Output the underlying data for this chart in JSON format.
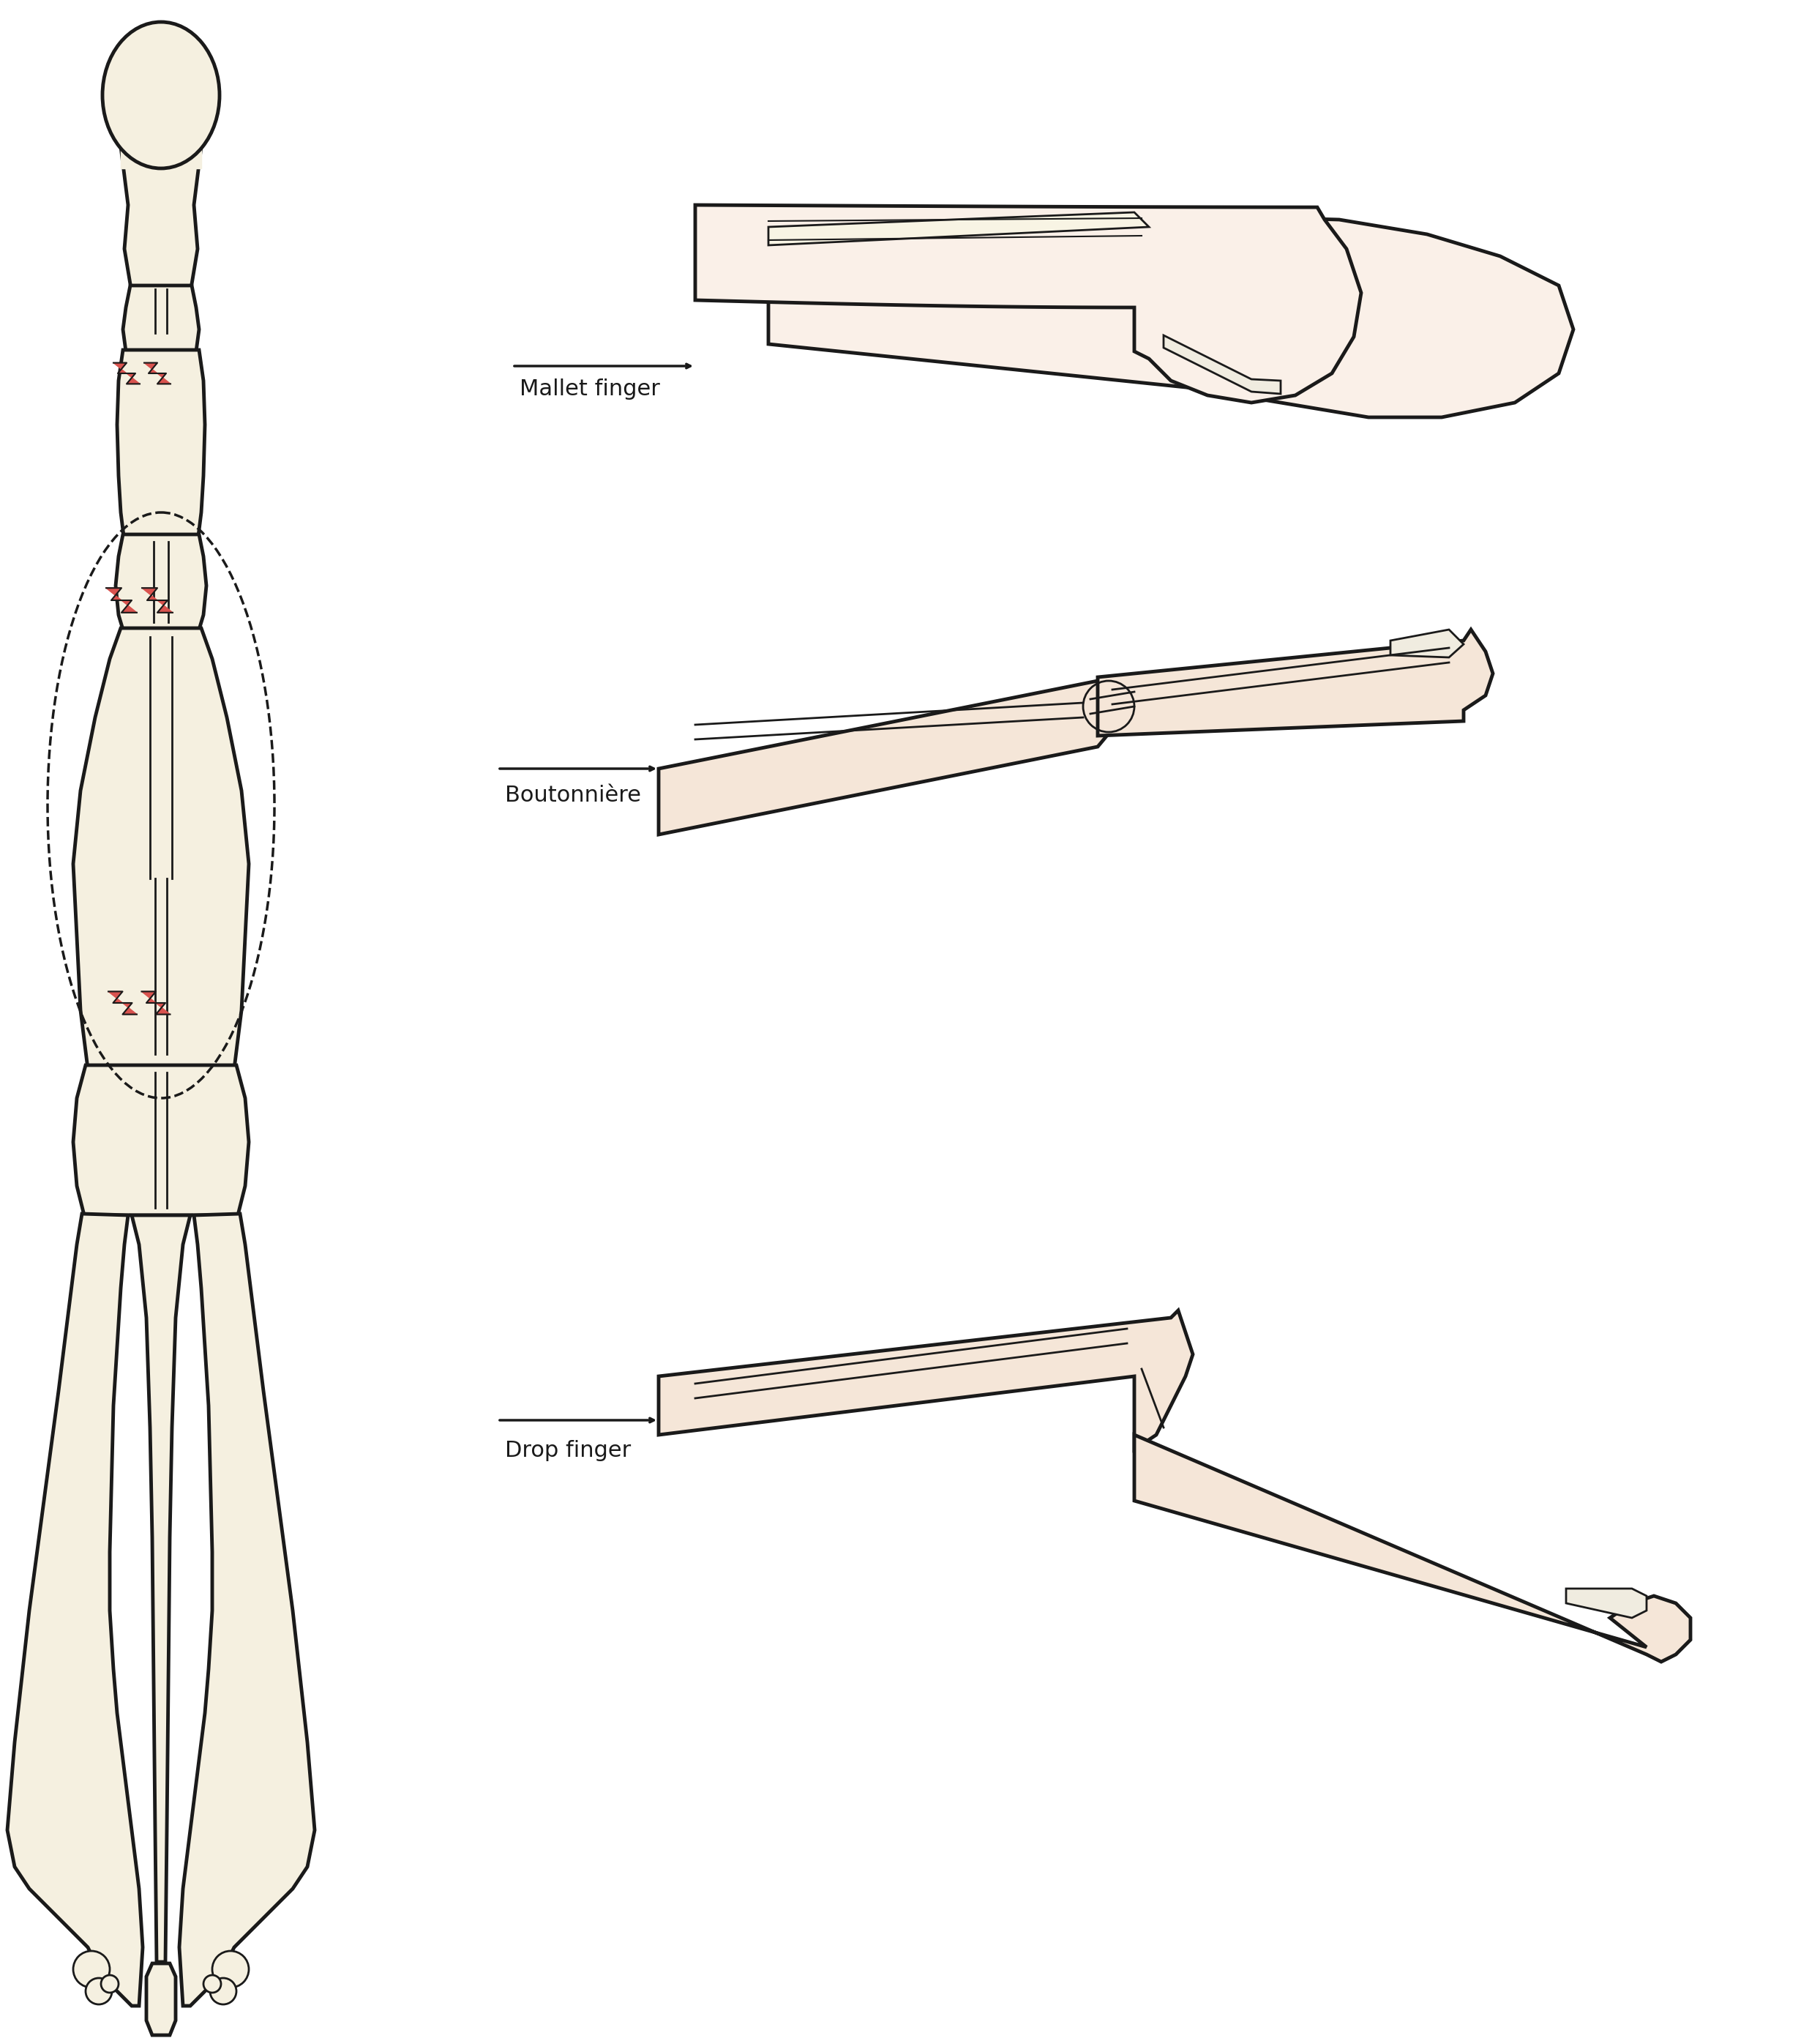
{
  "background_color": "#ffffff",
  "skin_color": "#f5e6d8",
  "skin_color_light": "#faf0e8",
  "bone_color": "#f5f0e0",
  "outline_color": "#1a1a1a",
  "tendon_color": "#f8f4e8",
  "injury_color": "#d9534f",
  "label_mallet": "Mallet finger",
  "label_boutonniere": "Boutonnière",
  "label_drop": "Drop finger",
  "font_size_label": 22,
  "arrow_color": "#1a1a1a",
  "dashed_color": "#1a1a1a"
}
